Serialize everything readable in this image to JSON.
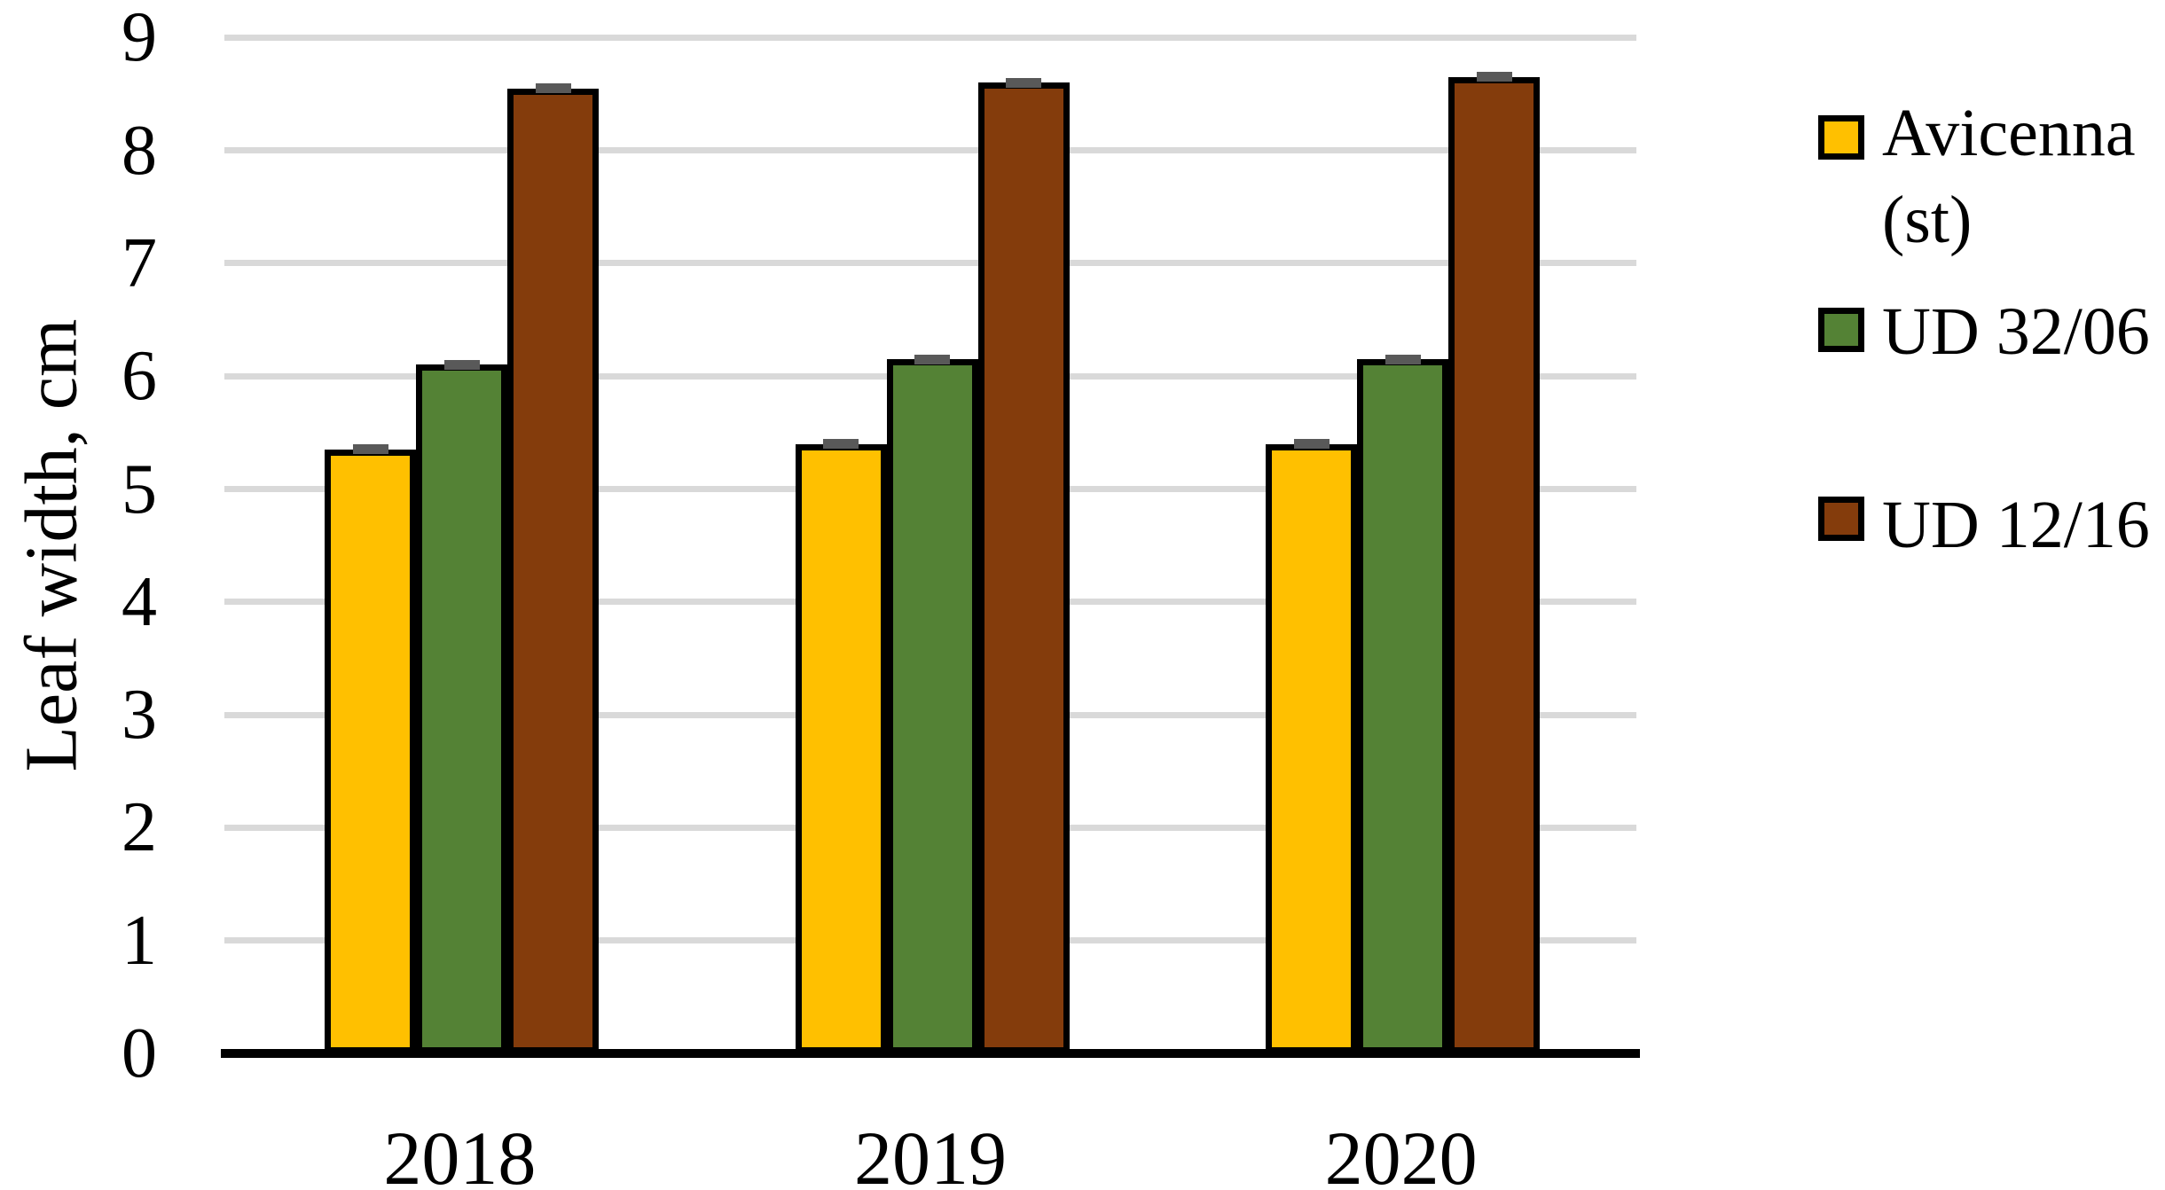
{
  "chart_data": {
    "type": "bar",
    "title": "",
    "ylabel": "Leaf width, cm",
    "xlabel": "",
    "categories": [
      "2018",
      "2019",
      "2020"
    ],
    "series": [
      {
        "name": "Avicenna (st)",
        "color": "#FFC000",
        "values": [
          5.35,
          5.4,
          5.4
        ]
      },
      {
        "name": "UD 32/06",
        "color": "#548235",
        "values": [
          6.1,
          6.15,
          6.15
        ]
      },
      {
        "name": "UD 12/16",
        "color": "#843C0C",
        "values": [
          8.55,
          8.6,
          8.65
        ]
      }
    ],
    "error_bars": {
      "visible": true,
      "approx_value": 0.05,
      "cap_color": "#595959"
    },
    "ylim": [
      0,
      9
    ],
    "yticks": [
      "0",
      "1",
      "2",
      "3",
      "4",
      "5",
      "6",
      "7",
      "8",
      "9"
    ],
    "grid": "horizontal",
    "gridline_color": "#D9D9D9",
    "bar_outline_color": "#000000",
    "axis_line_color": "#000000",
    "legend_position": "right"
  }
}
